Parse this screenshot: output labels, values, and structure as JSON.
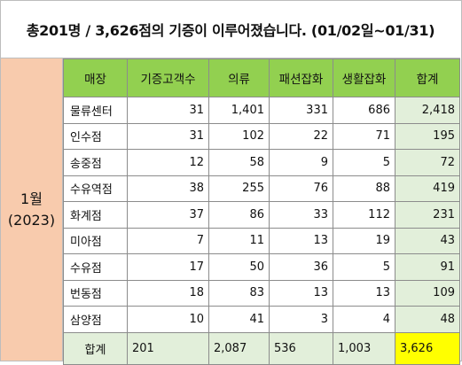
{
  "title": "총201명 / 3,626점의 기증이 이루어졌습니다. (01/02일~01/31)",
  "side": {
    "month": "1월",
    "year": "(2023)"
  },
  "table": {
    "headers": [
      "매장",
      "기증고객수",
      "의류",
      "패션잡화",
      "생활잡화",
      "합계"
    ],
    "rows": [
      [
        "물류센터",
        "31",
        "1,401",
        "331",
        "686",
        "2,418"
      ],
      [
        "인수점",
        "31",
        "102",
        "22",
        "71",
        "195"
      ],
      [
        "송중점",
        "12",
        "58",
        "9",
        "5",
        "72"
      ],
      [
        "수유역점",
        "38",
        "255",
        "76",
        "88",
        "419"
      ],
      [
        "화계점",
        "37",
        "86",
        "33",
        "112",
        "231"
      ],
      [
        "미아점",
        "7",
        "11",
        "13",
        "19",
        "43"
      ],
      [
        "수유점",
        "17",
        "50",
        "36",
        "5",
        "91"
      ],
      [
        "번동점",
        "18",
        "83",
        "13",
        "13",
        "109"
      ],
      [
        "삼양점",
        "10",
        "41",
        "3",
        "4",
        "48"
      ]
    ],
    "total": [
      "합계",
      "201",
      "2,087",
      "536",
      "1,003",
      "3,626"
    ]
  },
  "colors": {
    "header": "#92d050",
    "side": "#f8cbad",
    "total_row": "#e2efda",
    "grand_total": "#ffff00"
  }
}
